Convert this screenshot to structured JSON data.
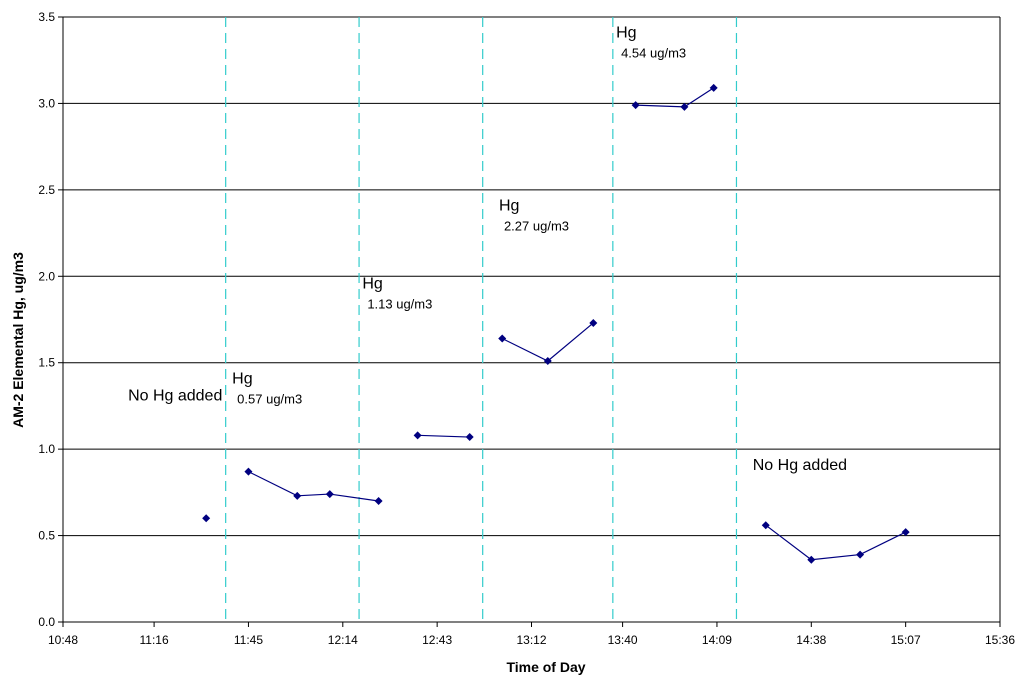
{
  "chart_data": {
    "type": "line",
    "xlabel": "Time of Day",
    "ylabel": "AM-2 Elemental Hg, ug/m3",
    "x_ticks": [
      "10:48",
      "11:16",
      "11:45",
      "12:14",
      "12:43",
      "13:12",
      "13:40",
      "14:09",
      "14:38",
      "15:07",
      "15:36"
    ],
    "xlim": [
      "10:48",
      "15:36"
    ],
    "ylim": [
      0,
      3.5
    ],
    "y_ticks": [
      "0.0",
      "0.5",
      "1.0",
      "1.5",
      "2.0",
      "2.5",
      "3.0",
      "3.5"
    ],
    "grid": "horizontal",
    "colors": {
      "series": "#000080",
      "dividers": "#33cccc",
      "grid": "#000000"
    },
    "segments": [
      {
        "x": [
          "11:32"
        ],
        "y": [
          0.6
        ]
      },
      {
        "x": [
          "11:45",
          "12:00",
          "12:10",
          "12:25"
        ],
        "y": [
          0.87,
          0.73,
          0.74,
          0.7
        ]
      },
      {
        "x": [
          "12:37",
          "12:53"
        ],
        "y": [
          1.08,
          1.07
        ]
      },
      {
        "x": [
          "13:03",
          "13:17",
          "13:31"
        ],
        "y": [
          1.64,
          1.51,
          1.73
        ]
      },
      {
        "x": [
          "13:44",
          "13:59",
          "14:08"
        ],
        "y": [
          2.99,
          2.98,
          3.09
        ]
      },
      {
        "x": [
          "14:24",
          "14:38",
          "14:53",
          "15:07"
        ],
        "y": [
          0.56,
          0.36,
          0.39,
          0.52
        ]
      }
    ],
    "dividers": [
      "11:38",
      "12:19",
      "12:57",
      "13:37",
      "14:15"
    ],
    "annotations": [
      {
        "lines": [
          "No Hg added"
        ],
        "x": "11:08",
        "y": 1.28
      },
      {
        "lines": [
          "Hg",
          "0.57 ug/m3"
        ],
        "x": "11:40",
        "y": 1.38
      },
      {
        "lines": [
          "Hg",
          "1.13 ug/m3"
        ],
        "x": "12:20",
        "y": 1.93
      },
      {
        "lines": [
          "Hg",
          "2.27 ug/m3"
        ],
        "x": "13:02",
        "y": 2.38
      },
      {
        "lines": [
          "Hg",
          "4.54 ug/m3"
        ],
        "x": "13:38",
        "y": 3.38
      },
      {
        "lines": [
          "No Hg added"
        ],
        "x": "14:20",
        "y": 0.88
      }
    ]
  }
}
